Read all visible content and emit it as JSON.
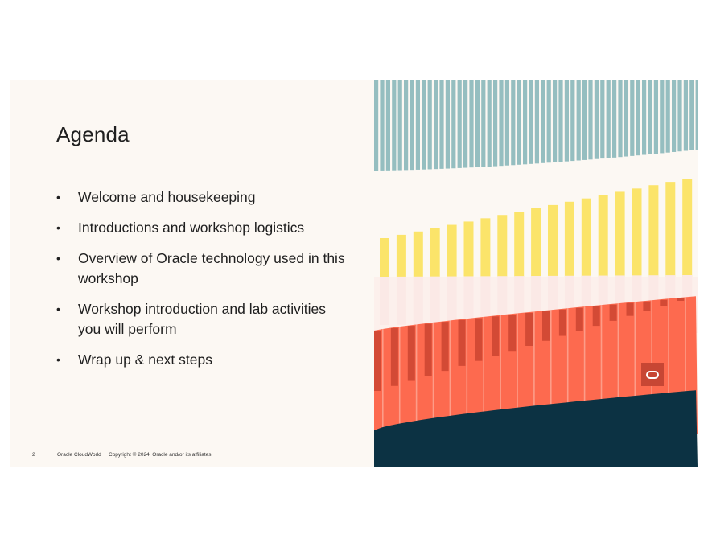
{
  "slide": {
    "title": "Agenda",
    "bullet_glyph": "•",
    "items": [
      "Welcome and housekeeping",
      "Introductions and workshop logistics",
      "Overview of Oracle technology used in this workshop",
      "Workshop introduction and lab activities you will perform",
      "Wrap up & next steps"
    ],
    "footer": {
      "page_number": "2",
      "event": "Oracle CloudWorld",
      "copyright": "Copyright © 2024, Oracle and/or its affiliates"
    },
    "logo": {
      "icon": "oracle-logo-icon",
      "color": "#c74634"
    }
  },
  "artwork": {
    "colors": {
      "teal": "#95bec0",
      "yellow": "#fbe46a",
      "pink": "#fbe9e6",
      "coral": "#fd6a4f",
      "dark_red": "#d34a35",
      "navy": "#0c3243",
      "cream": "#fcf8f3"
    }
  }
}
